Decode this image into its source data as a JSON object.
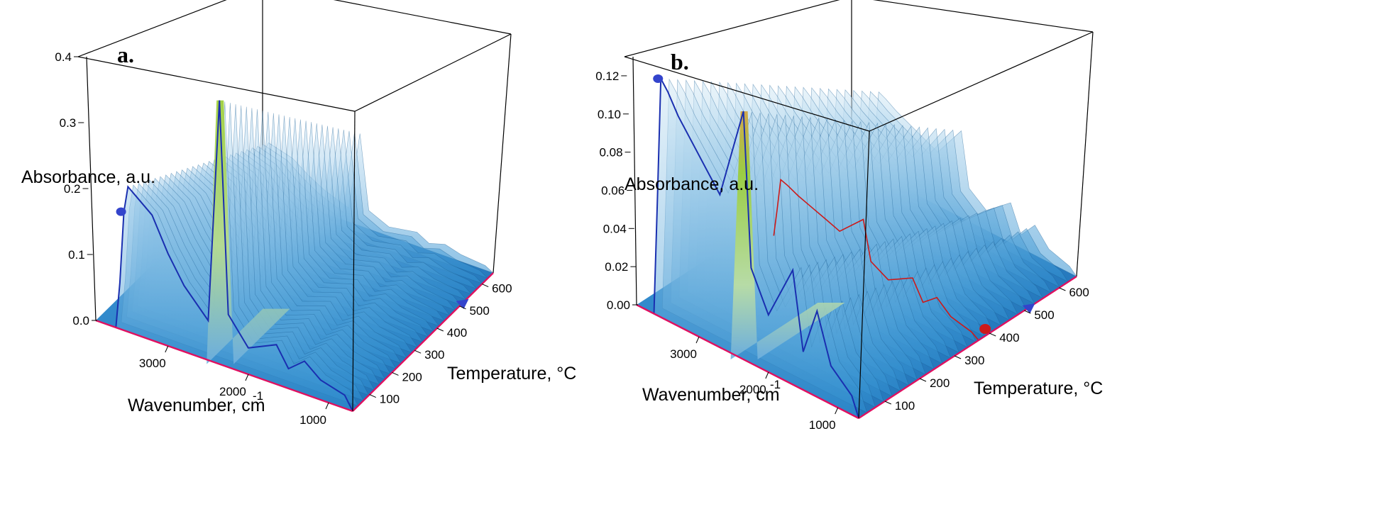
{
  "chart_data": [
    {
      "type": "3d-surface",
      "panel_label": "a.",
      "zlabel": "Absorbance, a.u.",
      "xlabel": "Wavenumber, cm",
      "xlabel_sup": "-1",
      "ylabel": "Temperature, °C",
      "z_ticks": [
        "0.0",
        "0.1",
        "0.2",
        "0.3",
        "0.4"
      ],
      "x_ticks": [
        "3000",
        "2000",
        "1000"
      ],
      "y_ticks": [
        "100",
        "200",
        "300",
        "400",
        "500",
        "600"
      ],
      "zlim": [
        0,
        0.4
      ],
      "xlim": [
        3900,
        700
      ],
      "ylim": [
        25,
        650
      ],
      "grid": false,
      "surface_color": "#2f8fd0",
      "peak_color": "#9acd32",
      "trace_color": "#1a2fb0",
      "baseline_color": "#e01060",
      "marker_colors": [
        "#3344cc"
      ],
      "front_trace": [
        {
          "wavenumber": 3650,
          "absorbance": 0.0
        },
        {
          "wavenumber": 3600,
          "absorbance": 0.07
        },
        {
          "wavenumber": 3550,
          "absorbance": 0.18
        },
        {
          "wavenumber": 3500,
          "absorbance": 0.22
        },
        {
          "wavenumber": 3400,
          "absorbance": 0.21
        },
        {
          "wavenumber": 3200,
          "absorbance": 0.19
        },
        {
          "wavenumber": 3000,
          "absorbance": 0.14
        },
        {
          "wavenumber": 2800,
          "absorbance": 0.1
        },
        {
          "wavenumber": 2500,
          "absorbance": 0.06
        },
        {
          "wavenumber": 2360,
          "absorbance": 0.4
        },
        {
          "wavenumber": 2250,
          "absorbance": 0.08
        },
        {
          "wavenumber": 2000,
          "absorbance": 0.04
        },
        {
          "wavenumber": 1650,
          "absorbance": 0.06
        },
        {
          "wavenumber": 1500,
          "absorbance": 0.03
        },
        {
          "wavenumber": 1300,
          "absorbance": 0.05
        },
        {
          "wavenumber": 1100,
          "absorbance": 0.03
        },
        {
          "wavenumber": 800,
          "absorbance": 0.02
        },
        {
          "wavenumber": 700,
          "absorbance": 0.0
        }
      ]
    },
    {
      "type": "3d-surface",
      "panel_label": "b.",
      "zlabel": "Absorbance, a.u.",
      "xlabel": "Wavenumber, cm",
      "xlabel_sup": "-1",
      "ylabel": "Temperature, °C",
      "z_ticks": [
        "0.00",
        "0.02",
        "0.04",
        "0.06",
        "0.08",
        "0.10",
        "0.12"
      ],
      "x_ticks": [
        "3000",
        "2000",
        "1000"
      ],
      "y_ticks": [
        "100",
        "200",
        "300",
        "400",
        "500",
        "600"
      ],
      "zlim": [
        0,
        0.13
      ],
      "xlim": [
        3900,
        700
      ],
      "ylim": [
        25,
        650
      ],
      "grid": false,
      "surface_color": "#2f8fd0",
      "peak_color": "#9acd32",
      "top_color": "#d2a23a",
      "trace_color": "#1a2fb0",
      "second_trace_color": "#cc1a1a",
      "baseline_color": "#e01060",
      "marker_colors": [
        "#3344cc",
        "#cc1a1a"
      ],
      "front_trace": [
        {
          "wavenumber": 3650,
          "absorbance": 0.0
        },
        {
          "wavenumber": 3600,
          "absorbance": 0.06
        },
        {
          "wavenumber": 3550,
          "absorbance": 0.125
        },
        {
          "wavenumber": 3450,
          "absorbance": 0.12
        },
        {
          "wavenumber": 3300,
          "absorbance": 0.11
        },
        {
          "wavenumber": 3100,
          "absorbance": 0.1
        },
        {
          "wavenumber": 2900,
          "absorbance": 0.09
        },
        {
          "wavenumber": 2700,
          "absorbance": 0.08
        },
        {
          "wavenumber": 2360,
          "absorbance": 0.13
        },
        {
          "wavenumber": 2250,
          "absorbance": 0.05
        },
        {
          "wavenumber": 2000,
          "absorbance": 0.03
        },
        {
          "wavenumber": 1650,
          "absorbance": 0.06
        },
        {
          "wavenumber": 1500,
          "absorbance": 0.02
        },
        {
          "wavenumber": 1300,
          "absorbance": 0.045
        },
        {
          "wavenumber": 1100,
          "absorbance": 0.02
        },
        {
          "wavenumber": 800,
          "absorbance": 0.01
        },
        {
          "wavenumber": 700,
          "absorbance": 0.0
        }
      ]
    }
  ]
}
